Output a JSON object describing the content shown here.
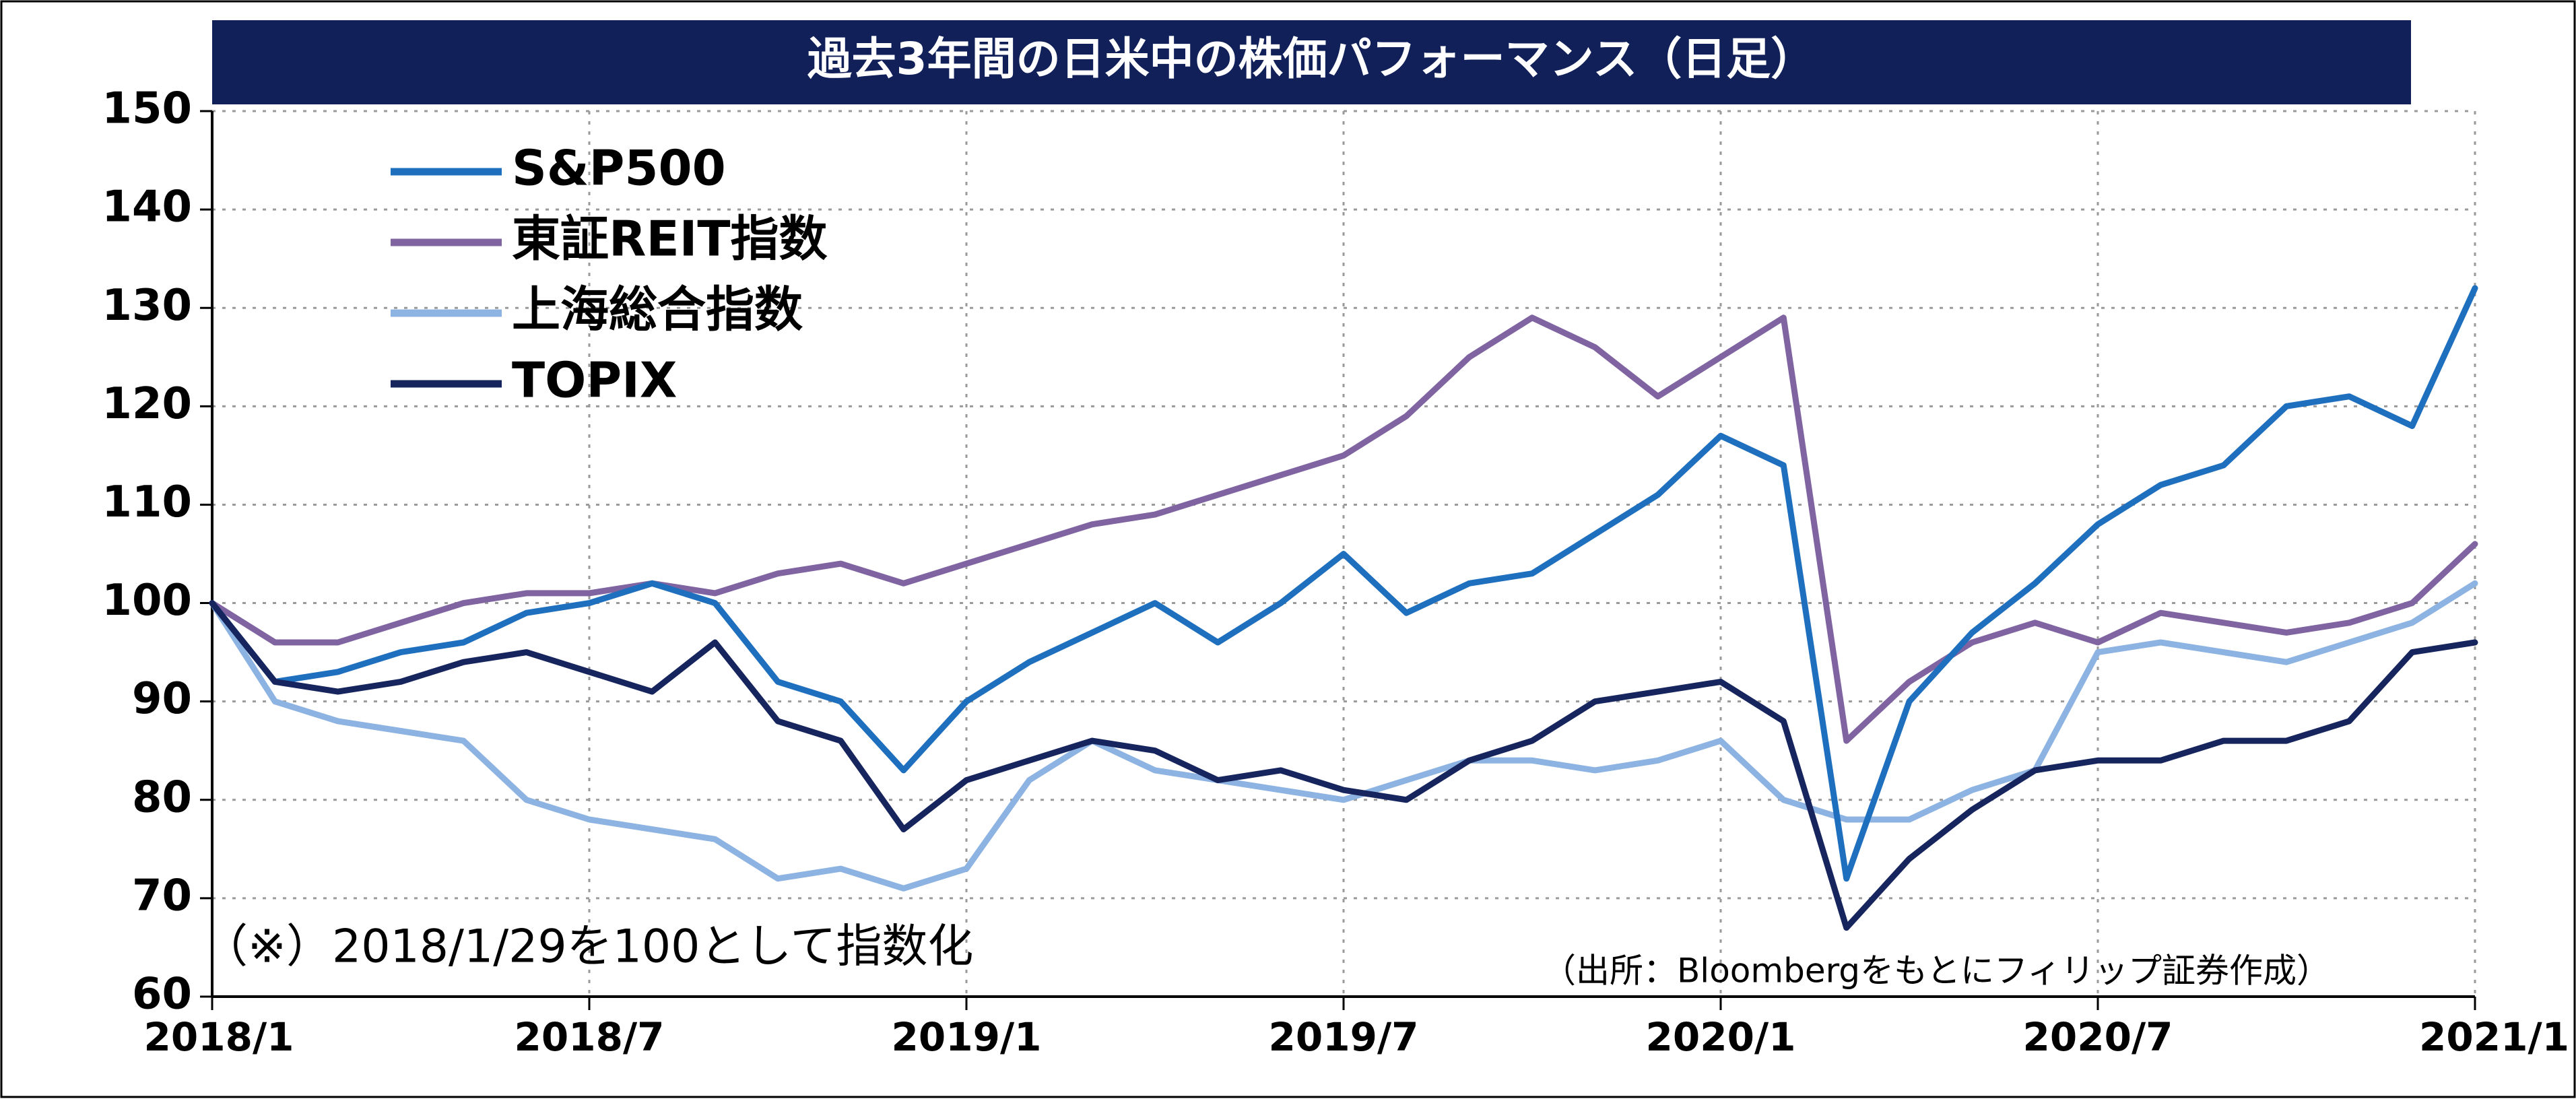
{
  "chart_data": {
    "type": "line",
    "title": "過去3年間の日米中の株価パフォーマンス（日足）",
    "note": "（※）2018/1/29を100として指数化",
    "source": "（出所：Bloombergをもとにフィリップ証券作成）",
    "y_ticks": [
      60,
      70,
      80,
      90,
      100,
      110,
      120,
      130,
      140,
      150
    ],
    "ylim": [
      60,
      150
    ],
    "x_ticks": [
      "2018/1",
      "2018/7",
      "2019/1",
      "2019/7",
      "2020/1",
      "2020/7",
      "2021/1"
    ],
    "grid": true,
    "legend_position": "top-left",
    "x": [
      "2018/1",
      "2018/2",
      "2018/3",
      "2018/4",
      "2018/5",
      "2018/6",
      "2018/7",
      "2018/8",
      "2018/9",
      "2018/10",
      "2018/11",
      "2018/12",
      "2019/1",
      "2019/2",
      "2019/3",
      "2019/4",
      "2019/5",
      "2019/6",
      "2019/7",
      "2019/8",
      "2019/9",
      "2019/10",
      "2019/11",
      "2019/12",
      "2020/1",
      "2020/2",
      "2020/3",
      "2020/4",
      "2020/5",
      "2020/6",
      "2020/7",
      "2020/8",
      "2020/9",
      "2020/10",
      "2020/11",
      "2020/12",
      "2021/1"
    ],
    "series": [
      {
        "name": "S&P500",
        "color": "#1f6fbf",
        "values": [
          100,
          92,
          93,
          95,
          96,
          99,
          100,
          102,
          100,
          92,
          90,
          83,
          90,
          94,
          97,
          100,
          96,
          100,
          105,
          99,
          102,
          103,
          107,
          111,
          117,
          114,
          72,
          90,
          97,
          102,
          108,
          112,
          114,
          120,
          121,
          118,
          132
        ]
      },
      {
        "name": "東証REIT指数",
        "color": "#8064a2",
        "values": [
          100,
          96,
          96,
          98,
          100,
          101,
          101,
          102,
          101,
          103,
          104,
          102,
          104,
          106,
          108,
          109,
          111,
          113,
          115,
          119,
          125,
          129,
          126,
          121,
          125,
          129,
          86,
          92,
          96,
          98,
          96,
          99,
          98,
          97,
          98,
          100,
          106
        ]
      },
      {
        "name": "上海総合指数",
        "color": "#8db3e2",
        "values": [
          100,
          90,
          88,
          87,
          86,
          80,
          78,
          77,
          76,
          72,
          73,
          71,
          73,
          82,
          86,
          83,
          82,
          81,
          80,
          82,
          84,
          84,
          83,
          84,
          86,
          80,
          78,
          78,
          81,
          83,
          95,
          96,
          95,
          94,
          96,
          98,
          102
        ]
      },
      {
        "name": "TOPIX",
        "color": "#17255e",
        "values": [
          100,
          92,
          91,
          92,
          94,
          95,
          93,
          91,
          96,
          88,
          86,
          77,
          82,
          84,
          86,
          85,
          82,
          83,
          81,
          80,
          84,
          86,
          90,
          91,
          92,
          88,
          67,
          74,
          79,
          83,
          84,
          84,
          86,
          86,
          88,
          95,
          96
        ]
      }
    ]
  }
}
